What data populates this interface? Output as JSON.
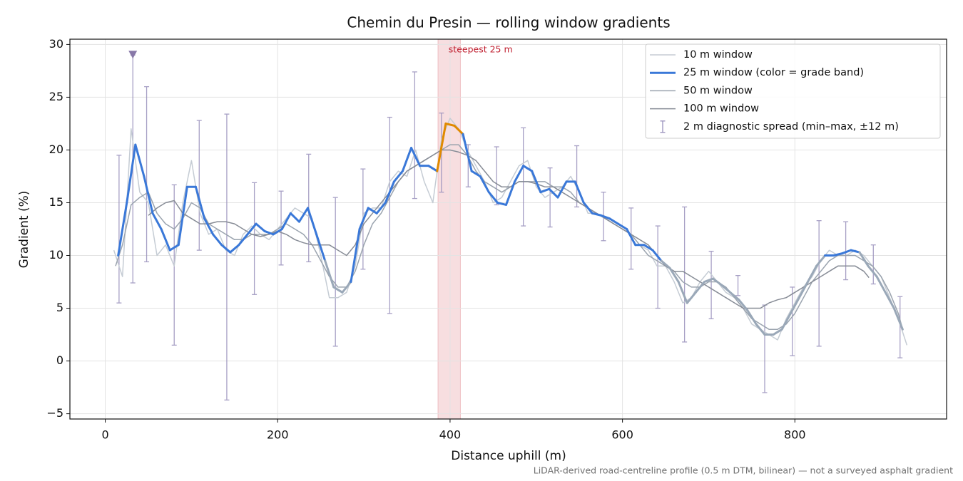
{
  "chart_data": {
    "type": "line",
    "title": "Chemin du Presin — rolling window gradients",
    "xlabel": "Distance uphill (m)",
    "ylabel": "Gradient (%)",
    "footnote": "LiDAR-derived road-centreline profile (0.5 m DTM, bilinear) — not a surveyed asphalt gradient",
    "xlim": [
      -41,
      976
    ],
    "ylim": [
      -5.5,
      30.5
    ],
    "xticks": [
      0,
      200,
      400,
      600,
      800
    ],
    "yticks": [
      {
        "value": -5,
        "label": "−5"
      },
      0,
      5,
      10,
      15,
      20,
      25,
      30
    ],
    "grid": true,
    "legend": "upper right",
    "series": [
      {
        "name": "10 m window",
        "color": "#c5ccd4",
        "width": 1.5,
        "x": [
          10,
          20,
          30,
          40,
          50,
          60,
          70,
          80,
          90,
          100,
          110,
          120,
          130,
          140,
          150,
          160,
          170,
          180,
          190,
          200,
          210,
          220,
          230,
          240,
          250,
          260,
          270,
          280,
          290,
          300,
          310,
          320,
          330,
          340,
          350,
          360,
          370,
          380,
          390,
          400,
          410,
          420,
          430,
          440,
          450,
          460,
          470,
          480,
          490,
          500,
          510,
          520,
          530,
          540,
          550,
          560,
          570,
          580,
          590,
          600,
          610,
          620,
          630,
          640,
          650,
          660,
          670,
          680,
          690,
          700,
          710,
          720,
          730,
          740,
          750,
          760,
          770,
          780,
          790,
          800,
          810,
          820,
          830,
          840,
          850,
          860,
          870,
          880,
          890,
          900,
          910,
          920,
          930
        ],
        "values": [
          10.5,
          8,
          22,
          16,
          15,
          10,
          11,
          9,
          15,
          19,
          14,
          12,
          12.5,
          10.5,
          10,
          12,
          12.8,
          12,
          11.5,
          12.5,
          13.5,
          14.5,
          14,
          13.5,
          10,
          6,
          6,
          6.5,
          9,
          14,
          14.5,
          14.5,
          17,
          18,
          17.5,
          20,
          17,
          15,
          21,
          23,
          22,
          20,
          18.5,
          17,
          15,
          15.5,
          17,
          18.5,
          19,
          16.5,
          15.5,
          16,
          16.5,
          17.5,
          16,
          14,
          14,
          13.5,
          13,
          12.5,
          12,
          11,
          10.5,
          9,
          9,
          7.5,
          5.5,
          6,
          7.5,
          8.5,
          7.5,
          6.5,
          6,
          5,
          3.5,
          3,
          2.5,
          2,
          4,
          5.5,
          7,
          8,
          9.5,
          10.5,
          10,
          10,
          10.5,
          10,
          9,
          8,
          6,
          4,
          1.5
        ]
      },
      {
        "name": "25 m window (color = grade band)",
        "color": "#3a78d8",
        "width": 3,
        "band_edges": [
          10,
          20
        ],
        "band_colors": [
          "#9aa8b8",
          "#3a78d8",
          "#e08a00"
        ],
        "x": [
          15,
          25,
          35,
          45,
          55,
          65,
          75,
          85,
          95,
          105,
          115,
          125,
          135,
          145,
          155,
          165,
          175,
          185,
          195,
          205,
          215,
          225,
          235,
          245,
          255,
          265,
          275,
          285,
          295,
          305,
          315,
          325,
          335,
          345,
          355,
          365,
          375,
          385,
          395,
          405,
          415,
          425,
          435,
          445,
          455,
          465,
          475,
          485,
          495,
          505,
          515,
          525,
          535,
          545,
          555,
          565,
          575,
          585,
          595,
          605,
          615,
          625,
          635,
          645,
          655,
          665,
          675,
          685,
          695,
          705,
          715,
          725,
          735,
          745,
          755,
          765,
          775,
          785,
          795,
          805,
          815,
          825,
          835,
          845,
          855,
          865,
          875,
          885,
          895,
          905,
          915,
          925
        ],
        "values": [
          10,
          15,
          20.5,
          17.5,
          14,
          12.5,
          10.5,
          11,
          16.5,
          16.5,
          13.5,
          12,
          11,
          10.3,
          11,
          12,
          13,
          12.3,
          12,
          12.5,
          14,
          13.2,
          14.5,
          12,
          9.5,
          7,
          6.5,
          7.5,
          12.5,
          14.5,
          14,
          15,
          17,
          18,
          20.2,
          18.5,
          18.5,
          18,
          22.5,
          22.3,
          21.5,
          18,
          17.5,
          16,
          15,
          14.8,
          17,
          18.5,
          18,
          16,
          16.3,
          15.5,
          17,
          17,
          15,
          14,
          13.8,
          13.5,
          13,
          12.5,
          11,
          11,
          10.5,
          9.5,
          8.8,
          7.5,
          5.5,
          6.5,
          7.5,
          7.8,
          7.2,
          6.5,
          5.8,
          4.8,
          3.5,
          2.5,
          2.5,
          3,
          4.5,
          6,
          7.5,
          9,
          10,
          10,
          10.2,
          10.5,
          10.3,
          9,
          8,
          6.5,
          5,
          3
        ]
      },
      {
        "name": "50 m window",
        "color": "#9aa3ae",
        "width": 1.5,
        "x": [
          12,
          20,
          30,
          40,
          50,
          60,
          70,
          80,
          90,
          100,
          110,
          120,
          130,
          140,
          150,
          160,
          170,
          180,
          190,
          200,
          210,
          220,
          230,
          240,
          250,
          260,
          270,
          280,
          290,
          300,
          310,
          320,
          330,
          340,
          350,
          360,
          370,
          380,
          390,
          400,
          410,
          420,
          430,
          440,
          450,
          460,
          470,
          480,
          490,
          500,
          510,
          520,
          530,
          540,
          550,
          560,
          570,
          580,
          590,
          600,
          610,
          620,
          630,
          640,
          650,
          660,
          670,
          680,
          690,
          700,
          710,
          720,
          730,
          740,
          750,
          760,
          770,
          780,
          790,
          800,
          810,
          820,
          830,
          840,
          850,
          860,
          870,
          880,
          890,
          900,
          910,
          920,
          925
        ],
        "values": [
          9,
          11,
          14.8,
          15.5,
          16,
          14,
          13,
          12.5,
          13.5,
          15,
          14.5,
          13,
          12.5,
          12,
          11.5,
          11.5,
          12,
          12,
          12,
          12.5,
          13,
          12.5,
          12,
          11,
          9.5,
          8,
          7,
          7,
          8.5,
          11,
          13,
          14,
          15.5,
          17,
          18,
          18.5,
          19,
          19.5,
          20,
          20.5,
          20.5,
          19.5,
          18,
          17,
          16.5,
          16,
          16.5,
          17,
          17,
          17,
          17,
          16.5,
          16.5,
          16,
          15,
          14.5,
          14,
          13.5,
          13,
          12.5,
          12,
          11,
          10,
          9.5,
          9,
          8.5,
          7.5,
          7,
          7,
          7.5,
          7.5,
          7,
          6,
          5,
          4,
          3.5,
          3,
          3,
          3.5,
          4.5,
          6,
          7.5,
          8.5,
          9.5,
          10,
          10,
          10,
          9.5,
          9,
          8,
          6.5,
          4.5,
          3
        ]
      },
      {
        "name": "100 m window",
        "color": "#878c96",
        "width": 1.5,
        "x": [
          50,
          60,
          70,
          80,
          90,
          100,
          110,
          120,
          130,
          140,
          150,
          160,
          170,
          180,
          190,
          200,
          210,
          220,
          230,
          240,
          250,
          260,
          270,
          280,
          290,
          300,
          310,
          320,
          330,
          340,
          350,
          360,
          370,
          380,
          390,
          400,
          410,
          420,
          430,
          440,
          450,
          460,
          470,
          480,
          490,
          500,
          510,
          520,
          530,
          540,
          550,
          560,
          570,
          580,
          590,
          600,
          610,
          620,
          630,
          640,
          650,
          660,
          670,
          680,
          690,
          700,
          710,
          720,
          730,
          740,
          750,
          760,
          770,
          780,
          790,
          800,
          810,
          820,
          830,
          840,
          850,
          860,
          870,
          880,
          886
        ],
        "values": [
          13.8,
          14.5,
          15,
          15.2,
          14,
          13.5,
          13,
          13,
          13.2,
          13.2,
          13,
          12.5,
          12,
          11.8,
          12,
          12.3,
          12,
          11.5,
          11.2,
          11,
          11,
          11,
          10.5,
          10,
          11,
          13,
          14,
          15,
          16,
          17,
          18,
          18.5,
          19,
          19.5,
          20,
          20,
          19.8,
          19.5,
          19,
          18,
          17,
          16.5,
          16.5,
          17,
          17,
          16.8,
          16.5,
          16.5,
          16,
          15.5,
          15,
          14.5,
          14,
          13.5,
          13,
          12.5,
          12,
          11.5,
          11,
          10,
          9,
          8.5,
          8.5,
          8,
          7.5,
          7,
          6.5,
          6,
          5.5,
          5,
          5,
          5,
          5.5,
          5.8,
          6,
          6.5,
          7,
          7.5,
          8,
          8.5,
          9,
          9,
          9,
          8.5,
          7.9
        ]
      }
    ],
    "errorbars": {
      "name": "2 m diagnostic spread (min–max, ±12 m)",
      "color": "#9890bc",
      "x": [
        16,
        32,
        48,
        80,
        109,
        141,
        173,
        204,
        236,
        267,
        299,
        330,
        359,
        390,
        421,
        454,
        485,
        516,
        547,
        578,
        610,
        641,
        672,
        703,
        734,
        765,
        797,
        828,
        859,
        891,
        922
      ],
      "min": [
        5.5,
        7.4,
        9.4,
        1.5,
        10.5,
        -3.7,
        6.3,
        9.1,
        9.4,
        1.4,
        8.7,
        4.5,
        15.4,
        16,
        16.5,
        14.8,
        12.8,
        12.7,
        14.6,
        11.4,
        8.7,
        5,
        1.8,
        4,
        6.2,
        -3,
        0.5,
        1.4,
        7.7,
        7.3,
        0.3
      ],
      "max": [
        19.5,
        29,
        26,
        16.7,
        22.8,
        23.4,
        16.9,
        16.1,
        19.6,
        15.5,
        18.2,
        23.1,
        27.4,
        23.5,
        20.5,
        20.3,
        22.1,
        18.3,
        20.4,
        16,
        14.5,
        12.8,
        14.6,
        10.4,
        8.1,
        5.3,
        7,
        13.3,
        13.2,
        11,
        6.1
      ]
    },
    "highlight": {
      "xmin": 386,
      "xmax": 412,
      "label": "steepest 25 m",
      "color": "#e8a0a6",
      "label_color": "#c02030"
    },
    "peak_marker": {
      "x": 32,
      "y": 29,
      "color": "#8878a8"
    }
  }
}
